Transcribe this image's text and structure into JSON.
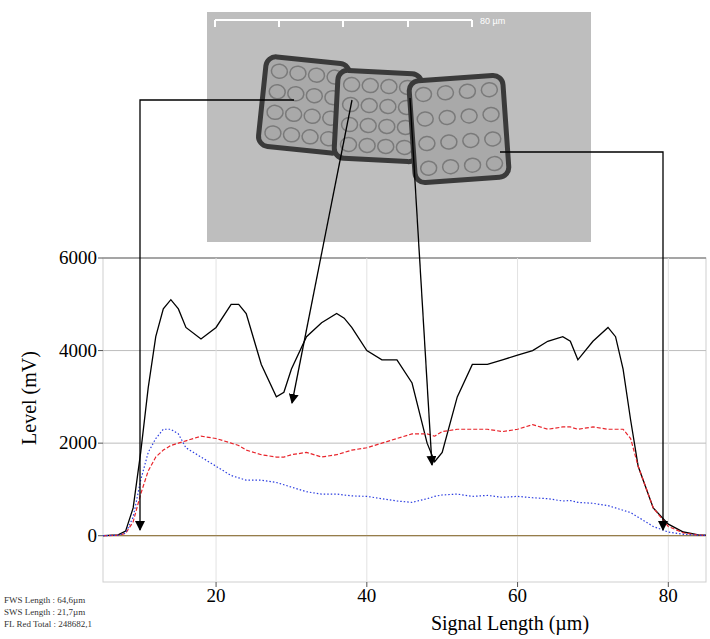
{
  "chart_data": {
    "type": "line",
    "x_label": "Signal Length (µm)",
    "y_label": "Level (mV)",
    "x": [
      5,
      7,
      8,
      9,
      10,
      11,
      12,
      13,
      14,
      15,
      16,
      18,
      20,
      22,
      23,
      24,
      26,
      28,
      29,
      30,
      32,
      34,
      36,
      37,
      38,
      40,
      42,
      44,
      46,
      48,
      49,
      50,
      52,
      54,
      56,
      58,
      60,
      62,
      64,
      66,
      67,
      68,
      70,
      72,
      73,
      74,
      75,
      76,
      78,
      80,
      82,
      84,
      85
    ],
    "series": [
      {
        "color": "#000000",
        "line_style": "solid",
        "values": [
          0,
          20,
          100,
          600,
          1800,
          3200,
          4300,
          4900,
          5100,
          4900,
          4500,
          4250,
          4500,
          5000,
          5000,
          4800,
          3700,
          3000,
          3100,
          3600,
          4300,
          4600,
          4800,
          4700,
          4500,
          4000,
          3800,
          3800,
          3300,
          2000,
          1600,
          1800,
          3000,
          3700,
          3700,
          3800,
          3900,
          4000,
          4200,
          4300,
          4200,
          3800,
          4200,
          4500,
          4300,
          3600,
          2500,
          1500,
          600,
          250,
          80,
          20,
          10
        ]
      },
      {
        "color": "#e8242b",
        "line_style": "dashed",
        "values": [
          0,
          10,
          50,
          300,
          900,
          1400,
          1700,
          1850,
          1950,
          2000,
          2050,
          2150,
          2100,
          2000,
          1950,
          1850,
          1750,
          1700,
          1700,
          1750,
          1800,
          1700,
          1750,
          1800,
          1850,
          1900,
          2000,
          2100,
          2200,
          2200,
          2150,
          2250,
          2300,
          2300,
          2300,
          2250,
          2300,
          2400,
          2300,
          2350,
          2350,
          2300,
          2350,
          2300,
          2300,
          2300,
          2100,
          1500,
          600,
          200,
          60,
          15,
          5
        ]
      },
      {
        "color": "#2b3de0",
        "line_style": "dotted",
        "values": [
          0,
          10,
          60,
          400,
          1200,
          1800,
          2100,
          2300,
          2300,
          2200,
          1900,
          1700,
          1500,
          1300,
          1250,
          1200,
          1200,
          1150,
          1100,
          1050,
          950,
          900,
          900,
          880,
          860,
          850,
          800,
          750,
          720,
          800,
          850,
          880,
          900,
          850,
          870,
          830,
          850,
          820,
          800,
          750,
          760,
          720,
          700,
          650,
          600,
          550,
          500,
          400,
          200,
          80,
          30,
          10,
          5
        ]
      }
    ],
    "xlim": [
      5,
      85
    ],
    "ylim": [
      -1000,
      6000
    ],
    "xticks": [
      20,
      40,
      60,
      80
    ],
    "yticks": [
      0,
      2000,
      4000,
      6000
    ],
    "grid": true,
    "annotations": [
      "FWS Length : 64,6µm",
      "SWS Length : 21,7µm",
      "FL Red Total : 248682,1"
    ]
  },
  "micrograph": {
    "scale_bar_label": "80 µm"
  }
}
